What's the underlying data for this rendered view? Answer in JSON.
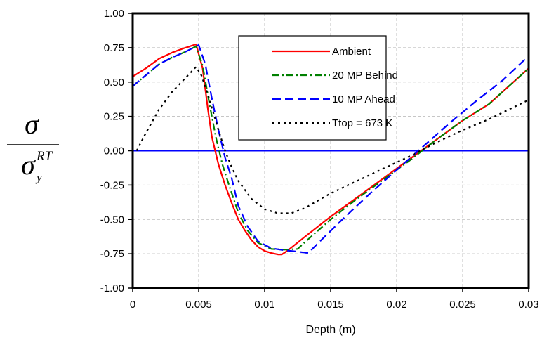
{
  "chart_data": {
    "type": "line",
    "title": "",
    "xlabel": "Depth (m)",
    "ylabel": {
      "numerator": "σ",
      "denominator": "σ",
      "superscript": "RT",
      "subscript": "y"
    },
    "xlim": [
      0,
      0.03
    ],
    "ylim": [
      -1.0,
      1.0
    ],
    "x_ticks": [
      "0",
      "0.005",
      "0.01",
      "0.015",
      "0.02",
      "0.025",
      "0.03"
    ],
    "y_ticks": [
      "1.00",
      "0.75",
      "0.50",
      "0.25",
      "0.00",
      "-0.25",
      "-0.50",
      "-0.75",
      "-1.00"
    ],
    "grid": {
      "horizontal": true,
      "vertical": true,
      "style": "dashed"
    },
    "legend_position": "top-right",
    "zero_line": {
      "y": 0,
      "color": "#0000ff"
    },
    "series": [
      {
        "name": "Ambient",
        "color": "#ff0000",
        "dash": "solid",
        "points": [
          [
            0,
            0.54
          ],
          [
            0.001,
            0.6
          ],
          [
            0.002,
            0.67
          ],
          [
            0.003,
            0.715
          ],
          [
            0.004,
            0.75
          ],
          [
            0.0048,
            0.775
          ],
          [
            0.0053,
            0.6
          ],
          [
            0.0057,
            0.3
          ],
          [
            0.006,
            0.1
          ],
          [
            0.0065,
            -0.1
          ],
          [
            0.007,
            -0.25
          ],
          [
            0.0075,
            -0.38
          ],
          [
            0.008,
            -0.5
          ],
          [
            0.0085,
            -0.58
          ],
          [
            0.009,
            -0.65
          ],
          [
            0.0095,
            -0.7
          ],
          [
            0.01,
            -0.73
          ],
          [
            0.0105,
            -0.745
          ],
          [
            0.011,
            -0.755
          ],
          [
            0.0113,
            -0.755
          ],
          [
            0.0117,
            -0.73
          ],
          [
            0.013,
            -0.63
          ],
          [
            0.015,
            -0.48
          ],
          [
            0.017,
            -0.34
          ],
          [
            0.019,
            -0.2
          ],
          [
            0.021,
            -0.06
          ],
          [
            0.023,
            0.08
          ],
          [
            0.025,
            0.22
          ],
          [
            0.027,
            0.34
          ],
          [
            0.03,
            0.6
          ]
        ]
      },
      {
        "name": "20 MP Behind",
        "color": "#008000",
        "dash": "dashdot",
        "points": [
          [
            0,
            0.47
          ],
          [
            0.001,
            0.55
          ],
          [
            0.002,
            0.63
          ],
          [
            0.003,
            0.68
          ],
          [
            0.004,
            0.72
          ],
          [
            0.0048,
            0.76
          ],
          [
            0.0053,
            0.62
          ],
          [
            0.0058,
            0.35
          ],
          [
            0.0063,
            0.1
          ],
          [
            0.0068,
            -0.1
          ],
          [
            0.0073,
            -0.25
          ],
          [
            0.008,
            -0.45
          ],
          [
            0.0087,
            -0.58
          ],
          [
            0.0095,
            -0.67
          ],
          [
            0.0105,
            -0.715
          ],
          [
            0.0115,
            -0.72
          ],
          [
            0.0125,
            -0.715
          ],
          [
            0.013,
            -0.67
          ],
          [
            0.015,
            -0.5
          ],
          [
            0.017,
            -0.35
          ],
          [
            0.019,
            -0.21
          ],
          [
            0.021,
            -0.07
          ],
          [
            0.023,
            0.08
          ],
          [
            0.025,
            0.22
          ],
          [
            0.027,
            0.34
          ],
          [
            0.03,
            0.6
          ]
        ]
      },
      {
        "name": "10 MP Ahead",
        "color": "#0000ff",
        "dash": "dash",
        "points": [
          [
            0,
            0.47
          ],
          [
            0.001,
            0.55
          ],
          [
            0.002,
            0.63
          ],
          [
            0.003,
            0.68
          ],
          [
            0.004,
            0.72
          ],
          [
            0.0048,
            0.76
          ],
          [
            0.005,
            0.77
          ],
          [
            0.0055,
            0.63
          ],
          [
            0.006,
            0.38
          ],
          [
            0.0065,
            0.15
          ],
          [
            0.007,
            -0.05
          ],
          [
            0.0075,
            -0.2
          ],
          [
            0.008,
            -0.4
          ],
          [
            0.0087,
            -0.55
          ],
          [
            0.0095,
            -0.66
          ],
          [
            0.0105,
            -0.71
          ],
          [
            0.0115,
            -0.725
          ],
          [
            0.0125,
            -0.735
          ],
          [
            0.0133,
            -0.745
          ],
          [
            0.0145,
            -0.63
          ],
          [
            0.016,
            -0.49
          ],
          [
            0.018,
            -0.31
          ],
          [
            0.02,
            -0.14
          ],
          [
            0.022,
            0.03
          ],
          [
            0.024,
            0.2
          ],
          [
            0.026,
            0.36
          ],
          [
            0.028,
            0.51
          ],
          [
            0.03,
            0.69
          ]
        ]
      },
      {
        "name": "Ttop = 673 K",
        "color": "#000000",
        "dash": "dot",
        "points": [
          [
            0.0003,
            0.0
          ],
          [
            0.001,
            0.13
          ],
          [
            0.002,
            0.3
          ],
          [
            0.003,
            0.43
          ],
          [
            0.004,
            0.53
          ],
          [
            0.0048,
            0.61
          ],
          [
            0.0052,
            0.55
          ],
          [
            0.0058,
            0.38
          ],
          [
            0.0065,
            0.15
          ],
          [
            0.007,
            0.0
          ],
          [
            0.0075,
            -0.12
          ],
          [
            0.008,
            -0.22
          ],
          [
            0.009,
            -0.35
          ],
          [
            0.01,
            -0.425
          ],
          [
            0.011,
            -0.455
          ],
          [
            0.012,
            -0.455
          ],
          [
            0.013,
            -0.42
          ],
          [
            0.015,
            -0.31
          ],
          [
            0.017,
            -0.22
          ],
          [
            0.019,
            -0.13
          ],
          [
            0.021,
            -0.04
          ],
          [
            0.023,
            0.06
          ],
          [
            0.025,
            0.15
          ],
          [
            0.027,
            0.23
          ],
          [
            0.03,
            0.37
          ]
        ]
      }
    ]
  }
}
